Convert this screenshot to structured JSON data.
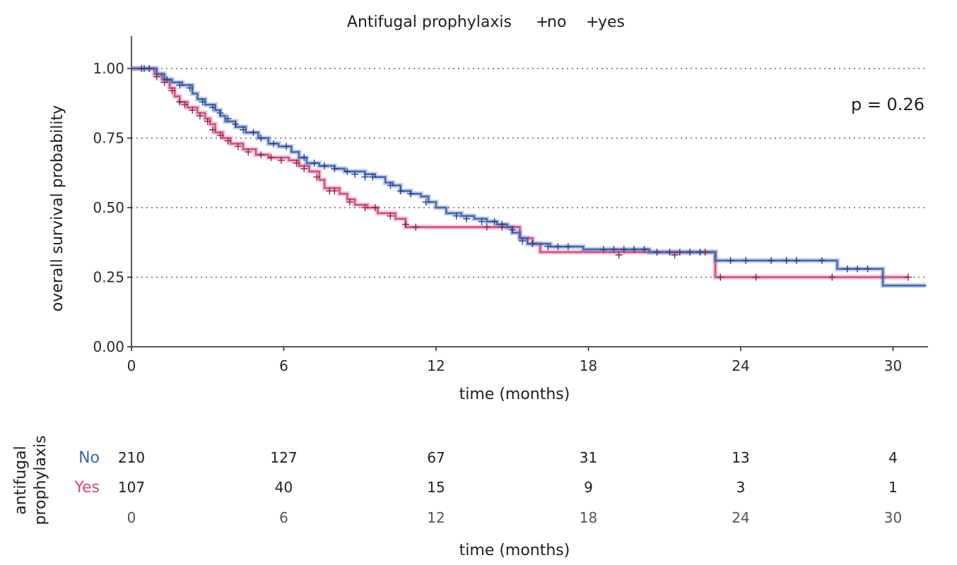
{
  "chart_data": {
    "type": "line",
    "subtype": "kaplan-meier",
    "legend": {
      "title": "Antifugal prophylaxis",
      "placement": "top",
      "entries": [
        {
          "label": "no",
          "color": "#d04a7e"
        },
        {
          "label": "yes",
          "color": "#3e63b0"
        }
      ]
    },
    "annotation": "p = 0.26",
    "xlabel": "time (months)",
    "ylabel": "overall survival probability",
    "xlim": [
      0,
      31.3
    ],
    "ylim": [
      0,
      1.1
    ],
    "x_ticks": [
      "0",
      "6",
      "12",
      "18",
      "24",
      "30"
    ],
    "y_ticks": [
      "0.00",
      "0.25",
      "0.50",
      "0.75",
      "1.00"
    ],
    "grid": "horizontal dotted at 0.25, 0.50, 0.75, 1.00",
    "series": [
      {
        "key": "no",
        "color": "#d04a7e",
        "steps": [
          [
            0,
            1.0
          ],
          [
            0.5,
            1.0
          ],
          [
            0.9,
            0.98
          ],
          [
            1.2,
            0.96
          ],
          [
            1.5,
            0.93
          ],
          [
            1.7,
            0.9
          ],
          [
            1.9,
            0.88
          ],
          [
            2.2,
            0.86
          ],
          [
            2.6,
            0.84
          ],
          [
            2.9,
            0.82
          ],
          [
            3.1,
            0.8
          ],
          [
            3.3,
            0.77
          ],
          [
            3.6,
            0.75
          ],
          [
            3.9,
            0.73
          ],
          [
            4.4,
            0.71
          ],
          [
            4.9,
            0.69
          ],
          [
            5.4,
            0.68
          ],
          [
            6.2,
            0.67
          ],
          [
            6.6,
            0.65
          ],
          [
            7.0,
            0.63
          ],
          [
            7.4,
            0.6
          ],
          [
            7.6,
            0.57
          ],
          [
            8.2,
            0.55
          ],
          [
            8.5,
            0.53
          ],
          [
            8.8,
            0.51
          ],
          [
            9.3,
            0.5
          ],
          [
            9.7,
            0.48
          ],
          [
            10.4,
            0.46
          ],
          [
            10.8,
            0.43
          ],
          [
            15.1,
            0.43
          ],
          [
            15.3,
            0.39
          ],
          [
            15.8,
            0.37
          ],
          [
            16.1,
            0.34
          ],
          [
            22.9,
            0.34
          ],
          [
            23.0,
            0.25
          ],
          [
            30.6,
            0.25
          ]
        ],
        "censor": [
          [
            0.4,
            1.0
          ],
          [
            1.0,
            0.97
          ],
          [
            1.3,
            0.95
          ],
          [
            1.6,
            0.92
          ],
          [
            1.9,
            0.88
          ],
          [
            2.1,
            0.87
          ],
          [
            2.4,
            0.85
          ],
          [
            2.7,
            0.83
          ],
          [
            3.0,
            0.81
          ],
          [
            3.2,
            0.78
          ],
          [
            3.5,
            0.76
          ],
          [
            3.8,
            0.74
          ],
          [
            4.2,
            0.72
          ],
          [
            4.6,
            0.7
          ],
          [
            5.1,
            0.69
          ],
          [
            5.5,
            0.68
          ],
          [
            5.9,
            0.67
          ],
          [
            6.5,
            0.66
          ],
          [
            6.8,
            0.64
          ],
          [
            7.3,
            0.61
          ],
          [
            7.8,
            0.56
          ],
          [
            8.0,
            0.56
          ],
          [
            8.6,
            0.52
          ],
          [
            9.2,
            0.5
          ],
          [
            9.6,
            0.5
          ],
          [
            10.2,
            0.47
          ],
          [
            10.8,
            0.44
          ],
          [
            11.2,
            0.43
          ],
          [
            14.0,
            0.43
          ],
          [
            14.6,
            0.43
          ],
          [
            19.2,
            0.33
          ],
          [
            21.4,
            0.33
          ],
          [
            22.6,
            0.34
          ],
          [
            23.2,
            0.25
          ],
          [
            24.6,
            0.25
          ],
          [
            27.6,
            0.25
          ],
          [
            30.6,
            0.25
          ]
        ]
      },
      {
        "key": "yes",
        "color": "#3e63b0",
        "steps": [
          [
            0,
            1.0
          ],
          [
            0.7,
            1.0
          ],
          [
            1.0,
            0.98
          ],
          [
            1.3,
            0.96
          ],
          [
            1.6,
            0.95
          ],
          [
            2.0,
            0.94
          ],
          [
            2.4,
            0.91
          ],
          [
            2.6,
            0.89
          ],
          [
            2.9,
            0.87
          ],
          [
            3.3,
            0.85
          ],
          [
            3.5,
            0.83
          ],
          [
            3.7,
            0.81
          ],
          [
            4.1,
            0.79
          ],
          [
            4.5,
            0.77
          ],
          [
            5.0,
            0.75
          ],
          [
            5.4,
            0.73
          ],
          [
            5.8,
            0.72
          ],
          [
            6.3,
            0.7
          ],
          [
            6.6,
            0.68
          ],
          [
            6.9,
            0.66
          ],
          [
            7.4,
            0.65
          ],
          [
            8.0,
            0.64
          ],
          [
            8.4,
            0.63
          ],
          [
            9.2,
            0.62
          ],
          [
            9.6,
            0.61
          ],
          [
            10.0,
            0.59
          ],
          [
            10.3,
            0.58
          ],
          [
            10.6,
            0.56
          ],
          [
            11.0,
            0.55
          ],
          [
            11.4,
            0.54
          ],
          [
            11.7,
            0.52
          ],
          [
            12.0,
            0.5
          ],
          [
            12.4,
            0.48
          ],
          [
            13.0,
            0.47
          ],
          [
            13.5,
            0.46
          ],
          [
            14.0,
            0.45
          ],
          [
            14.4,
            0.44
          ],
          [
            14.8,
            0.43
          ],
          [
            15.0,
            0.41
          ],
          [
            15.3,
            0.39
          ],
          [
            15.6,
            0.37
          ],
          [
            16.5,
            0.36
          ],
          [
            17.8,
            0.35
          ],
          [
            20.4,
            0.34
          ],
          [
            22.8,
            0.34
          ],
          [
            23.0,
            0.31
          ],
          [
            27.6,
            0.31
          ],
          [
            27.8,
            0.28
          ],
          [
            29.5,
            0.28
          ],
          [
            29.6,
            0.22
          ],
          [
            31.3,
            0.22
          ]
        ],
        "censor": [
          [
            0.5,
            1.0
          ],
          [
            0.7,
            1.0
          ],
          [
            1.4,
            0.96
          ],
          [
            1.9,
            0.94
          ],
          [
            2.3,
            0.93
          ],
          [
            2.8,
            0.88
          ],
          [
            3.2,
            0.86
          ],
          [
            3.5,
            0.84
          ],
          [
            3.8,
            0.82
          ],
          [
            4.1,
            0.8
          ],
          [
            4.4,
            0.78
          ],
          [
            4.8,
            0.77
          ],
          [
            5.1,
            0.75
          ],
          [
            5.6,
            0.73
          ],
          [
            6.1,
            0.72
          ],
          [
            6.8,
            0.68
          ],
          [
            7.2,
            0.66
          ],
          [
            7.6,
            0.65
          ],
          [
            8.0,
            0.64
          ],
          [
            8.5,
            0.63
          ],
          [
            8.8,
            0.62
          ],
          [
            9.2,
            0.61
          ],
          [
            9.5,
            0.61
          ],
          [
            10.2,
            0.58
          ],
          [
            10.6,
            0.56
          ],
          [
            11.0,
            0.55
          ],
          [
            11.6,
            0.52
          ],
          [
            12.8,
            0.47
          ],
          [
            13.2,
            0.46
          ],
          [
            13.8,
            0.45
          ],
          [
            14.3,
            0.45
          ],
          [
            14.6,
            0.44
          ],
          [
            15.0,
            0.42
          ],
          [
            15.4,
            0.38
          ],
          [
            15.8,
            0.37
          ],
          [
            16.4,
            0.36
          ],
          [
            16.8,
            0.36
          ],
          [
            17.2,
            0.36
          ],
          [
            18.6,
            0.35
          ],
          [
            19.0,
            0.35
          ],
          [
            19.4,
            0.35
          ],
          [
            19.8,
            0.35
          ],
          [
            20.2,
            0.35
          ],
          [
            20.7,
            0.34
          ],
          [
            21.2,
            0.34
          ],
          [
            21.6,
            0.34
          ],
          [
            22.0,
            0.34
          ],
          [
            22.4,
            0.34
          ],
          [
            23.6,
            0.31
          ],
          [
            24.2,
            0.31
          ],
          [
            25.2,
            0.31
          ],
          [
            25.8,
            0.31
          ],
          [
            26.2,
            0.31
          ],
          [
            27.2,
            0.31
          ],
          [
            28.2,
            0.28
          ],
          [
            28.6,
            0.28
          ],
          [
            29.0,
            0.28
          ]
        ]
      }
    ],
    "risk_table": {
      "title": "antifugal prophylaxis",
      "xlabel": "time (months)",
      "times": [
        "0",
        "6",
        "12",
        "18",
        "24",
        "30"
      ],
      "rows": [
        {
          "label": "No",
          "color": "#3e63b0",
          "counts": [
            "210",
            "127",
            "67",
            "31",
            "13",
            "4"
          ]
        },
        {
          "label": "Yes",
          "color": "#d04a7e",
          "counts": [
            "107",
            "40",
            "15",
            "9",
            "3",
            "1"
          ]
        }
      ]
    }
  }
}
